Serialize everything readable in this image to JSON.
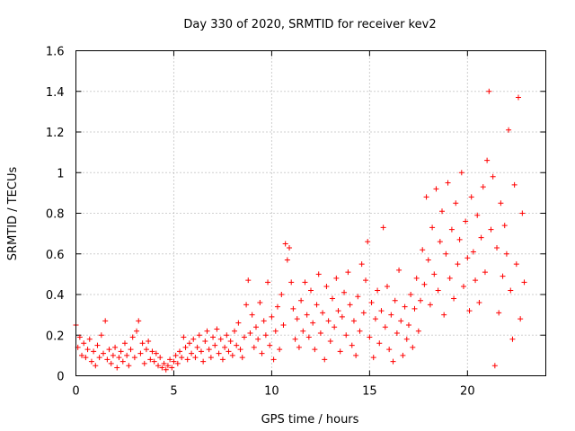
{
  "chart_data": {
    "type": "scatter",
    "title": "Day 330 of 2020, SRMTID for receiver kev2",
    "xlabel": "GPS time / hours",
    "ylabel": "SRMTID / TECUs",
    "xlim": [
      0,
      24
    ],
    "ylim": [
      0,
      1.6
    ],
    "xticks": [
      0,
      5,
      10,
      15,
      20
    ],
    "xtick_labels": [
      "0",
      "5",
      "10",
      "15",
      "20"
    ],
    "yticks": [
      0,
      0.2,
      0.4,
      0.6,
      0.8,
      1.0,
      1.2,
      1.4,
      1.6
    ],
    "ytick_labels": [
      "0",
      "0.2",
      "0.4",
      "0.6",
      "0.8",
      "1",
      "1.2",
      "1.4",
      "1.6"
    ],
    "grid": true,
    "marker": "+",
    "color": "#ff0000",
    "series": [
      {
        "name": "SRMTID",
        "points": [
          [
            0.0,
            0.25
          ],
          [
            0.1,
            0.14
          ],
          [
            0.2,
            0.19
          ],
          [
            0.3,
            0.1
          ],
          [
            0.4,
            0.16
          ],
          [
            0.5,
            0.09
          ],
          [
            0.6,
            0.13
          ],
          [
            0.7,
            0.18
          ],
          [
            0.8,
            0.07
          ],
          [
            0.9,
            0.12
          ],
          [
            1.0,
            0.05
          ],
          [
            1.1,
            0.15
          ],
          [
            1.2,
            0.09
          ],
          [
            1.3,
            0.2
          ],
          [
            1.4,
            0.11
          ],
          [
            1.5,
            0.27
          ],
          [
            1.6,
            0.08
          ],
          [
            1.7,
            0.13
          ],
          [
            1.8,
            0.06
          ],
          [
            1.9,
            0.1
          ],
          [
            2.0,
            0.14
          ],
          [
            2.1,
            0.04
          ],
          [
            2.2,
            0.09
          ],
          [
            2.3,
            0.12
          ],
          [
            2.4,
            0.07
          ],
          [
            2.5,
            0.16
          ],
          [
            2.6,
            0.1
          ],
          [
            2.7,
            0.05
          ],
          [
            2.8,
            0.13
          ],
          [
            2.9,
            0.19
          ],
          [
            3.0,
            0.09
          ],
          [
            3.1,
            0.22
          ],
          [
            3.2,
            0.27
          ],
          [
            3.3,
            0.11
          ],
          [
            3.4,
            0.16
          ],
          [
            3.5,
            0.06
          ],
          [
            3.6,
            0.13
          ],
          [
            3.7,
            0.17
          ],
          [
            3.8,
            0.08
          ],
          [
            3.9,
            0.12
          ],
          [
            4.0,
            0.07
          ],
          [
            4.1,
            0.11
          ],
          [
            4.2,
            0.05
          ],
          [
            4.3,
            0.09
          ],
          [
            4.4,
            0.04
          ],
          [
            4.5,
            0.06
          ],
          [
            4.6,
            0.03
          ],
          [
            4.7,
            0.05
          ],
          [
            4.8,
            0.08
          ],
          [
            4.9,
            0.04
          ],
          [
            5.0,
            0.07
          ],
          [
            5.1,
            0.1
          ],
          [
            5.2,
            0.06
          ],
          [
            5.3,
            0.12
          ],
          [
            5.4,
            0.09
          ],
          [
            5.5,
            0.19
          ],
          [
            5.6,
            0.14
          ],
          [
            5.7,
            0.08
          ],
          [
            5.8,
            0.16
          ],
          [
            5.9,
            0.11
          ],
          [
            6.0,
            0.18
          ],
          [
            6.1,
            0.09
          ],
          [
            6.2,
            0.14
          ],
          [
            6.3,
            0.2
          ],
          [
            6.4,
            0.12
          ],
          [
            6.5,
            0.07
          ],
          [
            6.6,
            0.17
          ],
          [
            6.7,
            0.22
          ],
          [
            6.8,
            0.13
          ],
          [
            6.9,
            0.09
          ],
          [
            7.0,
            0.19
          ],
          [
            7.1,
            0.15
          ],
          [
            7.2,
            0.23
          ],
          [
            7.3,
            0.11
          ],
          [
            7.4,
            0.18
          ],
          [
            7.5,
            0.08
          ],
          [
            7.6,
            0.14
          ],
          [
            7.7,
            0.2
          ],
          [
            7.8,
            0.12
          ],
          [
            7.9,
            0.17
          ],
          [
            8.0,
            0.1
          ],
          [
            8.1,
            0.22
          ],
          [
            8.2,
            0.15
          ],
          [
            8.3,
            0.26
          ],
          [
            8.4,
            0.13
          ],
          [
            8.5,
            0.09
          ],
          [
            8.6,
            0.19
          ],
          [
            8.7,
            0.35
          ],
          [
            8.8,
            0.47
          ],
          [
            8.9,
            0.21
          ],
          [
            9.0,
            0.3
          ],
          [
            9.1,
            0.14
          ],
          [
            9.2,
            0.24
          ],
          [
            9.3,
            0.18
          ],
          [
            9.4,
            0.36
          ],
          [
            9.5,
            0.11
          ],
          [
            9.6,
            0.27
          ],
          [
            9.7,
            0.2
          ],
          [
            9.8,
            0.46
          ],
          [
            9.9,
            0.15
          ],
          [
            10.0,
            0.29
          ],
          [
            10.1,
            0.08
          ],
          [
            10.2,
            0.22
          ],
          [
            10.3,
            0.34
          ],
          [
            10.4,
            0.13
          ],
          [
            10.5,
            0.4
          ],
          [
            10.6,
            0.25
          ],
          [
            10.7,
            0.65
          ],
          [
            10.8,
            0.57
          ],
          [
            10.9,
            0.63
          ],
          [
            11.0,
            0.46
          ],
          [
            11.1,
            0.33
          ],
          [
            11.2,
            0.18
          ],
          [
            11.3,
            0.28
          ],
          [
            11.4,
            0.14
          ],
          [
            11.5,
            0.37
          ],
          [
            11.6,
            0.22
          ],
          [
            11.7,
            0.46
          ],
          [
            11.8,
            0.3
          ],
          [
            11.9,
            0.19
          ],
          [
            12.0,
            0.42
          ],
          [
            12.1,
            0.26
          ],
          [
            12.2,
            0.13
          ],
          [
            12.3,
            0.35
          ],
          [
            12.4,
            0.5
          ],
          [
            12.5,
            0.21
          ],
          [
            12.6,
            0.31
          ],
          [
            12.7,
            0.08
          ],
          [
            12.8,
            0.44
          ],
          [
            12.9,
            0.27
          ],
          [
            13.0,
            0.17
          ],
          [
            13.1,
            0.38
          ],
          [
            13.2,
            0.24
          ],
          [
            13.3,
            0.48
          ],
          [
            13.4,
            0.32
          ],
          [
            13.5,
            0.12
          ],
          [
            13.6,
            0.29
          ],
          [
            13.7,
            0.41
          ],
          [
            13.8,
            0.2
          ],
          [
            13.9,
            0.51
          ],
          [
            14.0,
            0.35
          ],
          [
            14.1,
            0.15
          ],
          [
            14.2,
            0.27
          ],
          [
            14.3,
            0.1
          ],
          [
            14.4,
            0.39
          ],
          [
            14.5,
            0.22
          ],
          [
            14.6,
            0.55
          ],
          [
            14.7,
            0.31
          ],
          [
            14.8,
            0.47
          ],
          [
            14.9,
            0.66
          ],
          [
            15.0,
            0.19
          ],
          [
            15.1,
            0.36
          ],
          [
            15.2,
            0.09
          ],
          [
            15.3,
            0.28
          ],
          [
            15.4,
            0.42
          ],
          [
            15.5,
            0.16
          ],
          [
            15.6,
            0.32
          ],
          [
            15.7,
            0.73
          ],
          [
            15.8,
            0.24
          ],
          [
            15.9,
            0.44
          ],
          [
            16.0,
            0.13
          ],
          [
            16.1,
            0.3
          ],
          [
            16.2,
            0.07
          ],
          [
            16.3,
            0.37
          ],
          [
            16.4,
            0.21
          ],
          [
            16.5,
            0.52
          ],
          [
            16.6,
            0.27
          ],
          [
            16.7,
            0.1
          ],
          [
            16.8,
            0.34
          ],
          [
            16.9,
            0.18
          ],
          [
            17.0,
            0.25
          ],
          [
            17.1,
            0.4
          ],
          [
            17.2,
            0.14
          ],
          [
            17.3,
            0.33
          ],
          [
            17.4,
            0.48
          ],
          [
            17.5,
            0.22
          ],
          [
            17.6,
            0.37
          ],
          [
            17.7,
            0.62
          ],
          [
            17.8,
            0.45
          ],
          [
            17.9,
            0.88
          ],
          [
            18.0,
            0.57
          ],
          [
            18.1,
            0.35
          ],
          [
            18.2,
            0.73
          ],
          [
            18.3,
            0.5
          ],
          [
            18.4,
            0.92
          ],
          [
            18.5,
            0.42
          ],
          [
            18.6,
            0.66
          ],
          [
            18.7,
            0.81
          ],
          [
            18.8,
            0.3
          ],
          [
            18.9,
            0.6
          ],
          [
            19.0,
            0.95
          ],
          [
            19.1,
            0.48
          ],
          [
            19.2,
            0.72
          ],
          [
            19.3,
            0.38
          ],
          [
            19.4,
            0.85
          ],
          [
            19.5,
            0.55
          ],
          [
            19.6,
            0.67
          ],
          [
            19.7,
            1.0
          ],
          [
            19.8,
            0.44
          ],
          [
            19.9,
            0.76
          ],
          [
            20.0,
            0.58
          ],
          [
            20.1,
            0.32
          ],
          [
            20.2,
            0.88
          ],
          [
            20.3,
            0.61
          ],
          [
            20.4,
            0.47
          ],
          [
            20.5,
            0.79
          ],
          [
            20.6,
            0.36
          ],
          [
            20.7,
            0.68
          ],
          [
            20.8,
            0.93
          ],
          [
            20.9,
            0.51
          ],
          [
            21.0,
            1.06
          ],
          [
            21.1,
            1.4
          ],
          [
            21.2,
            0.72
          ],
          [
            21.3,
            0.98
          ],
          [
            21.4,
            0.05
          ],
          [
            21.5,
            0.63
          ],
          [
            21.6,
            0.31
          ],
          [
            21.7,
            0.85
          ],
          [
            21.8,
            0.49
          ],
          [
            21.9,
            0.74
          ],
          [
            22.0,
            0.6
          ],
          [
            22.1,
            1.21
          ],
          [
            22.2,
            0.42
          ],
          [
            22.3,
            0.18
          ],
          [
            22.4,
            0.94
          ],
          [
            22.5,
            0.55
          ],
          [
            22.6,
            1.37
          ],
          [
            22.7,
            0.28
          ],
          [
            22.8,
            0.8
          ],
          [
            22.9,
            0.46
          ]
        ]
      }
    ]
  }
}
